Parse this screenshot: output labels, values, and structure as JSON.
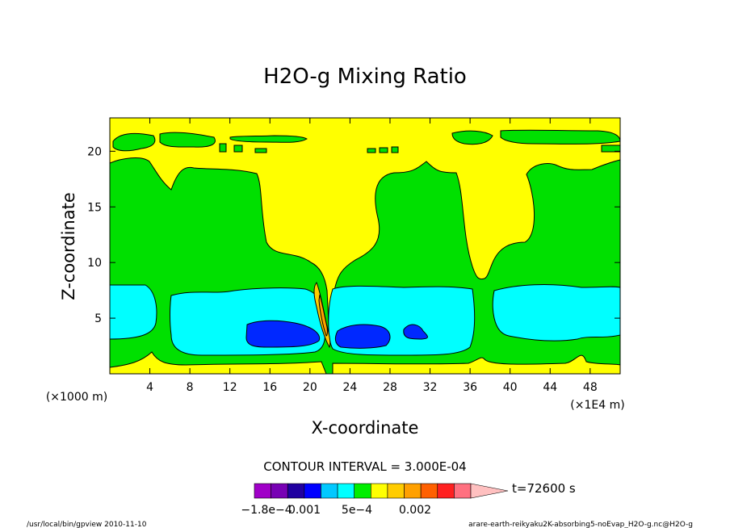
{
  "chart_data": {
    "type": "heatmap",
    "title": "H2O-g Mixing Ratio",
    "xlabel": "X-coordinate",
    "ylabel": "Z-coordinate",
    "x_unit_left": "(×1000 m)",
    "x_unit_right": "(×1E4 m)",
    "xlim": [
      0,
      51
    ],
    "ylim": [
      0,
      23
    ],
    "x_ticks": [
      4,
      8,
      12,
      16,
      20,
      24,
      28,
      32,
      36,
      40,
      44,
      48
    ],
    "y_ticks": [
      5,
      10,
      15,
      20
    ],
    "contour_interval_text": "CONTOUR INTERVAL = 3.000E-04",
    "time_text": "t=72600 s",
    "colorbar_labels": [
      "−1.8e−4",
      "0.001",
      "5e−4",
      "0.002"
    ],
    "colorbar_colors": [
      "#a000c8",
      "#7800b4",
      "#2000a0",
      "#0000ff",
      "#00c8ff",
      "#00ffff",
      "#00ee00",
      "#ffff00",
      "#ffcc00",
      "#ffa000",
      "#ff6000",
      "#ff2020",
      "#ff7080",
      "#ffc0c0"
    ],
    "levels_fill": {
      "low": "#00ffff",
      "lowest": "#0028ff",
      "mid": "#00e000",
      "high": "#ffff00",
      "peak_1": "#ffcc00",
      "peak_2": "#ffa000"
    },
    "regions": {
      "yellow_background": {
        "level": "high",
        "z_range": "0–23",
        "x_range": "0–51"
      },
      "green_band_lower": {
        "level": "mid",
        "z_range": "0.5–19"
      },
      "cyan_cells": [
        {
          "x_range": [
            0,
            4.5
          ],
          "z_range": [
            3,
            8
          ]
        },
        {
          "x_range": [
            6,
            21
          ],
          "z_range": [
            2,
            7.5
          ]
        },
        {
          "x_range": [
            22,
            35.5
          ],
          "z_range": [
            2,
            7.8
          ]
        },
        {
          "x_range": [
            38.5,
            51
          ],
          "z_range": [
            3,
            7.5
          ]
        }
      ],
      "blue_cells": [
        {
          "x_range": [
            14,
            21
          ],
          "z_range": [
            2.5,
            4.7
          ]
        },
        {
          "x_range": [
            23,
            28.5
          ],
          "z_range": [
            2.5,
            4.5
          ]
        },
        {
          "x_range": [
            29.5,
            31.5
          ],
          "z_range": [
            3,
            4.5
          ]
        }
      ],
      "orange_plume": {
        "x_range": [
          20.5,
          22
        ],
        "z_range": [
          3,
          8
        ]
      }
    },
    "footer_left": "/usr/local/bin/gpview   2010-11-10",
    "footer_right": "arare-earth-reikyaku2K-absorbing5-noEvap_H2O-g.nc@H2O-g"
  }
}
